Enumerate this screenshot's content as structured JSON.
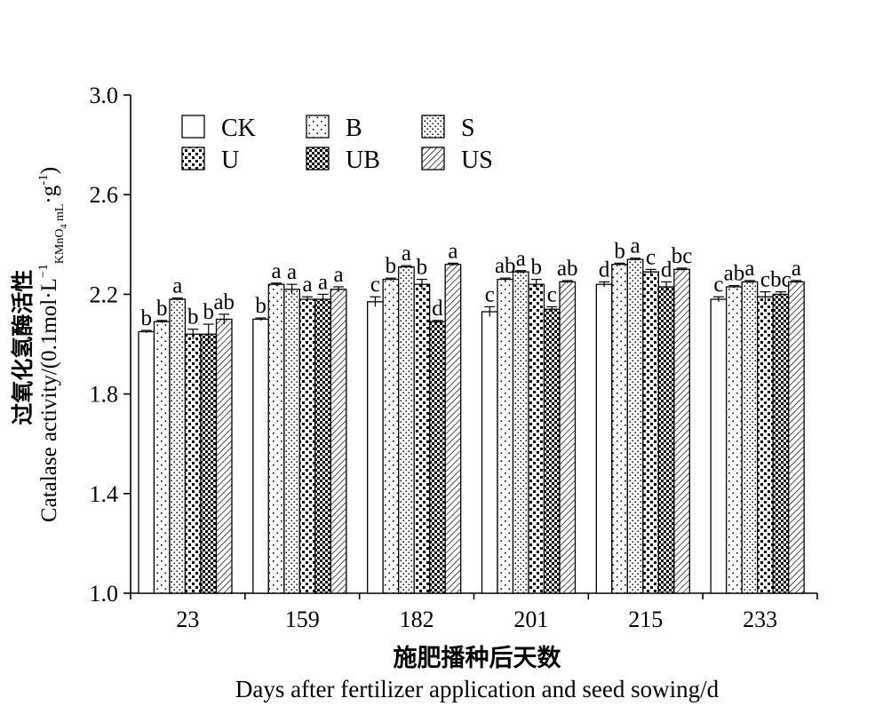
{
  "chart_data": {
    "type": "bar",
    "categories": [
      "23",
      "159",
      "182",
      "201",
      "215",
      "233"
    ],
    "ylim": [
      1.0,
      3.0
    ],
    "yticks": [
      "1.0",
      "1.4",
      "1.8",
      "2.2",
      "2.6",
      "3.0"
    ],
    "ylabel_cn": "过氧化氢酶活性",
    "ylabel_en": "Catalase activity/(0.1mol·L",
    "ylabel_sup1": "−1",
    "ylabel_sub": "KMnO",
    "ylabel_sub4": "4",
    "ylabel_sub_tail": " mL",
    "ylabel_mid": "·g",
    "ylabel_sup2": "-1",
    "ylabel_close": ")",
    "xlabel_cn": "施肥播种后天数",
    "xlabel_en": "Days after fertilizer application and seed sowing/d",
    "legend_position": "top-left",
    "series": [
      {
        "name": "CK",
        "values": [
          2.05,
          2.1,
          2.17,
          2.13,
          2.24,
          2.18
        ],
        "err": [
          0.005,
          0.005,
          0.02,
          0.02,
          0.01,
          0.01
        ],
        "letters": [
          "b",
          "b",
          "c",
          "c",
          "d",
          "c"
        ]
      },
      {
        "name": "B",
        "values": [
          2.09,
          2.24,
          2.26,
          2.26,
          2.32,
          2.23
        ],
        "err": [
          0.005,
          0.005,
          0.005,
          0.005,
          0.005,
          0.005
        ],
        "letters": [
          "b",
          "a",
          "b",
          "ab",
          "b",
          "ab"
        ]
      },
      {
        "name": "S",
        "values": [
          2.18,
          2.22,
          2.31,
          2.29,
          2.34,
          2.25
        ],
        "err": [
          0.005,
          0.02,
          0.005,
          0.005,
          0.005,
          0.005
        ],
        "letters": [
          "a",
          "a",
          "a",
          "a",
          "a",
          "a"
        ]
      },
      {
        "name": "U",
        "values": [
          2.04,
          2.18,
          2.24,
          2.24,
          2.29,
          2.19
        ],
        "err": [
          0.02,
          0.01,
          0.02,
          0.02,
          0.01,
          0.02
        ],
        "letters": [
          "b",
          "a",
          "b",
          "b",
          "c",
          "c"
        ]
      },
      {
        "name": "UB",
        "values": [
          2.04,
          2.18,
          2.09,
          2.14,
          2.23,
          2.2
        ],
        "err": [
          0.04,
          0.02,
          0.005,
          0.01,
          0.02,
          0.01
        ],
        "letters": [
          "b",
          "a",
          "d",
          "c",
          "d",
          "bc"
        ]
      },
      {
        "name": "US",
        "values": [
          2.1,
          2.22,
          2.32,
          2.25,
          2.3,
          2.25
        ],
        "err": [
          0.02,
          0.01,
          0.005,
          0.005,
          0.005,
          0.005
        ],
        "letters": [
          "ab",
          "a",
          "a",
          "ab",
          "bc",
          "a"
        ]
      }
    ],
    "patterns": [
      "white",
      "sparse-dots",
      "dense-dots",
      "checker-small",
      "checker-large",
      "diagonal"
    ]
  }
}
